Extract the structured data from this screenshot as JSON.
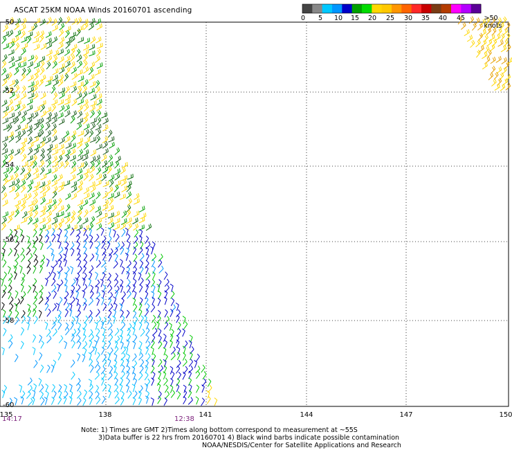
{
  "title": "ASCAT 25KM NOAA Winds 20160701 ascending",
  "color_scale": {
    "labels": [
      "0",
      "5",
      "10",
      "15",
      "20",
      "25",
      "30",
      "35",
      "40",
      "45",
      ">50 knots"
    ],
    "colors": [
      "#444444",
      "#888888",
      "#00c8ff",
      "#0096ff",
      "#0000c8",
      "#00a000",
      "#00dc00",
      "#ffd700",
      "#ffc800",
      "#ff9600",
      "#ff6400",
      "#ff2828",
      "#c80000",
      "#7a3c14",
      "#b43c00",
      "#ff00ff",
      "#b400ff",
      "#5a0096"
    ]
  },
  "axes": {
    "latitude_labels": [
      "-50",
      "-52",
      "-54",
      "-56",
      "-58",
      "-60"
    ],
    "longitude_labels": [
      "135",
      "138",
      "141",
      "144",
      "147",
      "150"
    ]
  },
  "time_labels": {
    "left": "14:17",
    "right": "12:38"
  },
  "notes": {
    "line1": "Note: 1) Times are GMT 2)Times along bottom correspond to measurement at ~55S",
    "line2": "3)Data buffer is 22 hrs from 20160701 4) Black wind barbs indicate possible contamination",
    "line3": "NOAA/NESDIS/Center for Satellite Applications and Research"
  }
}
